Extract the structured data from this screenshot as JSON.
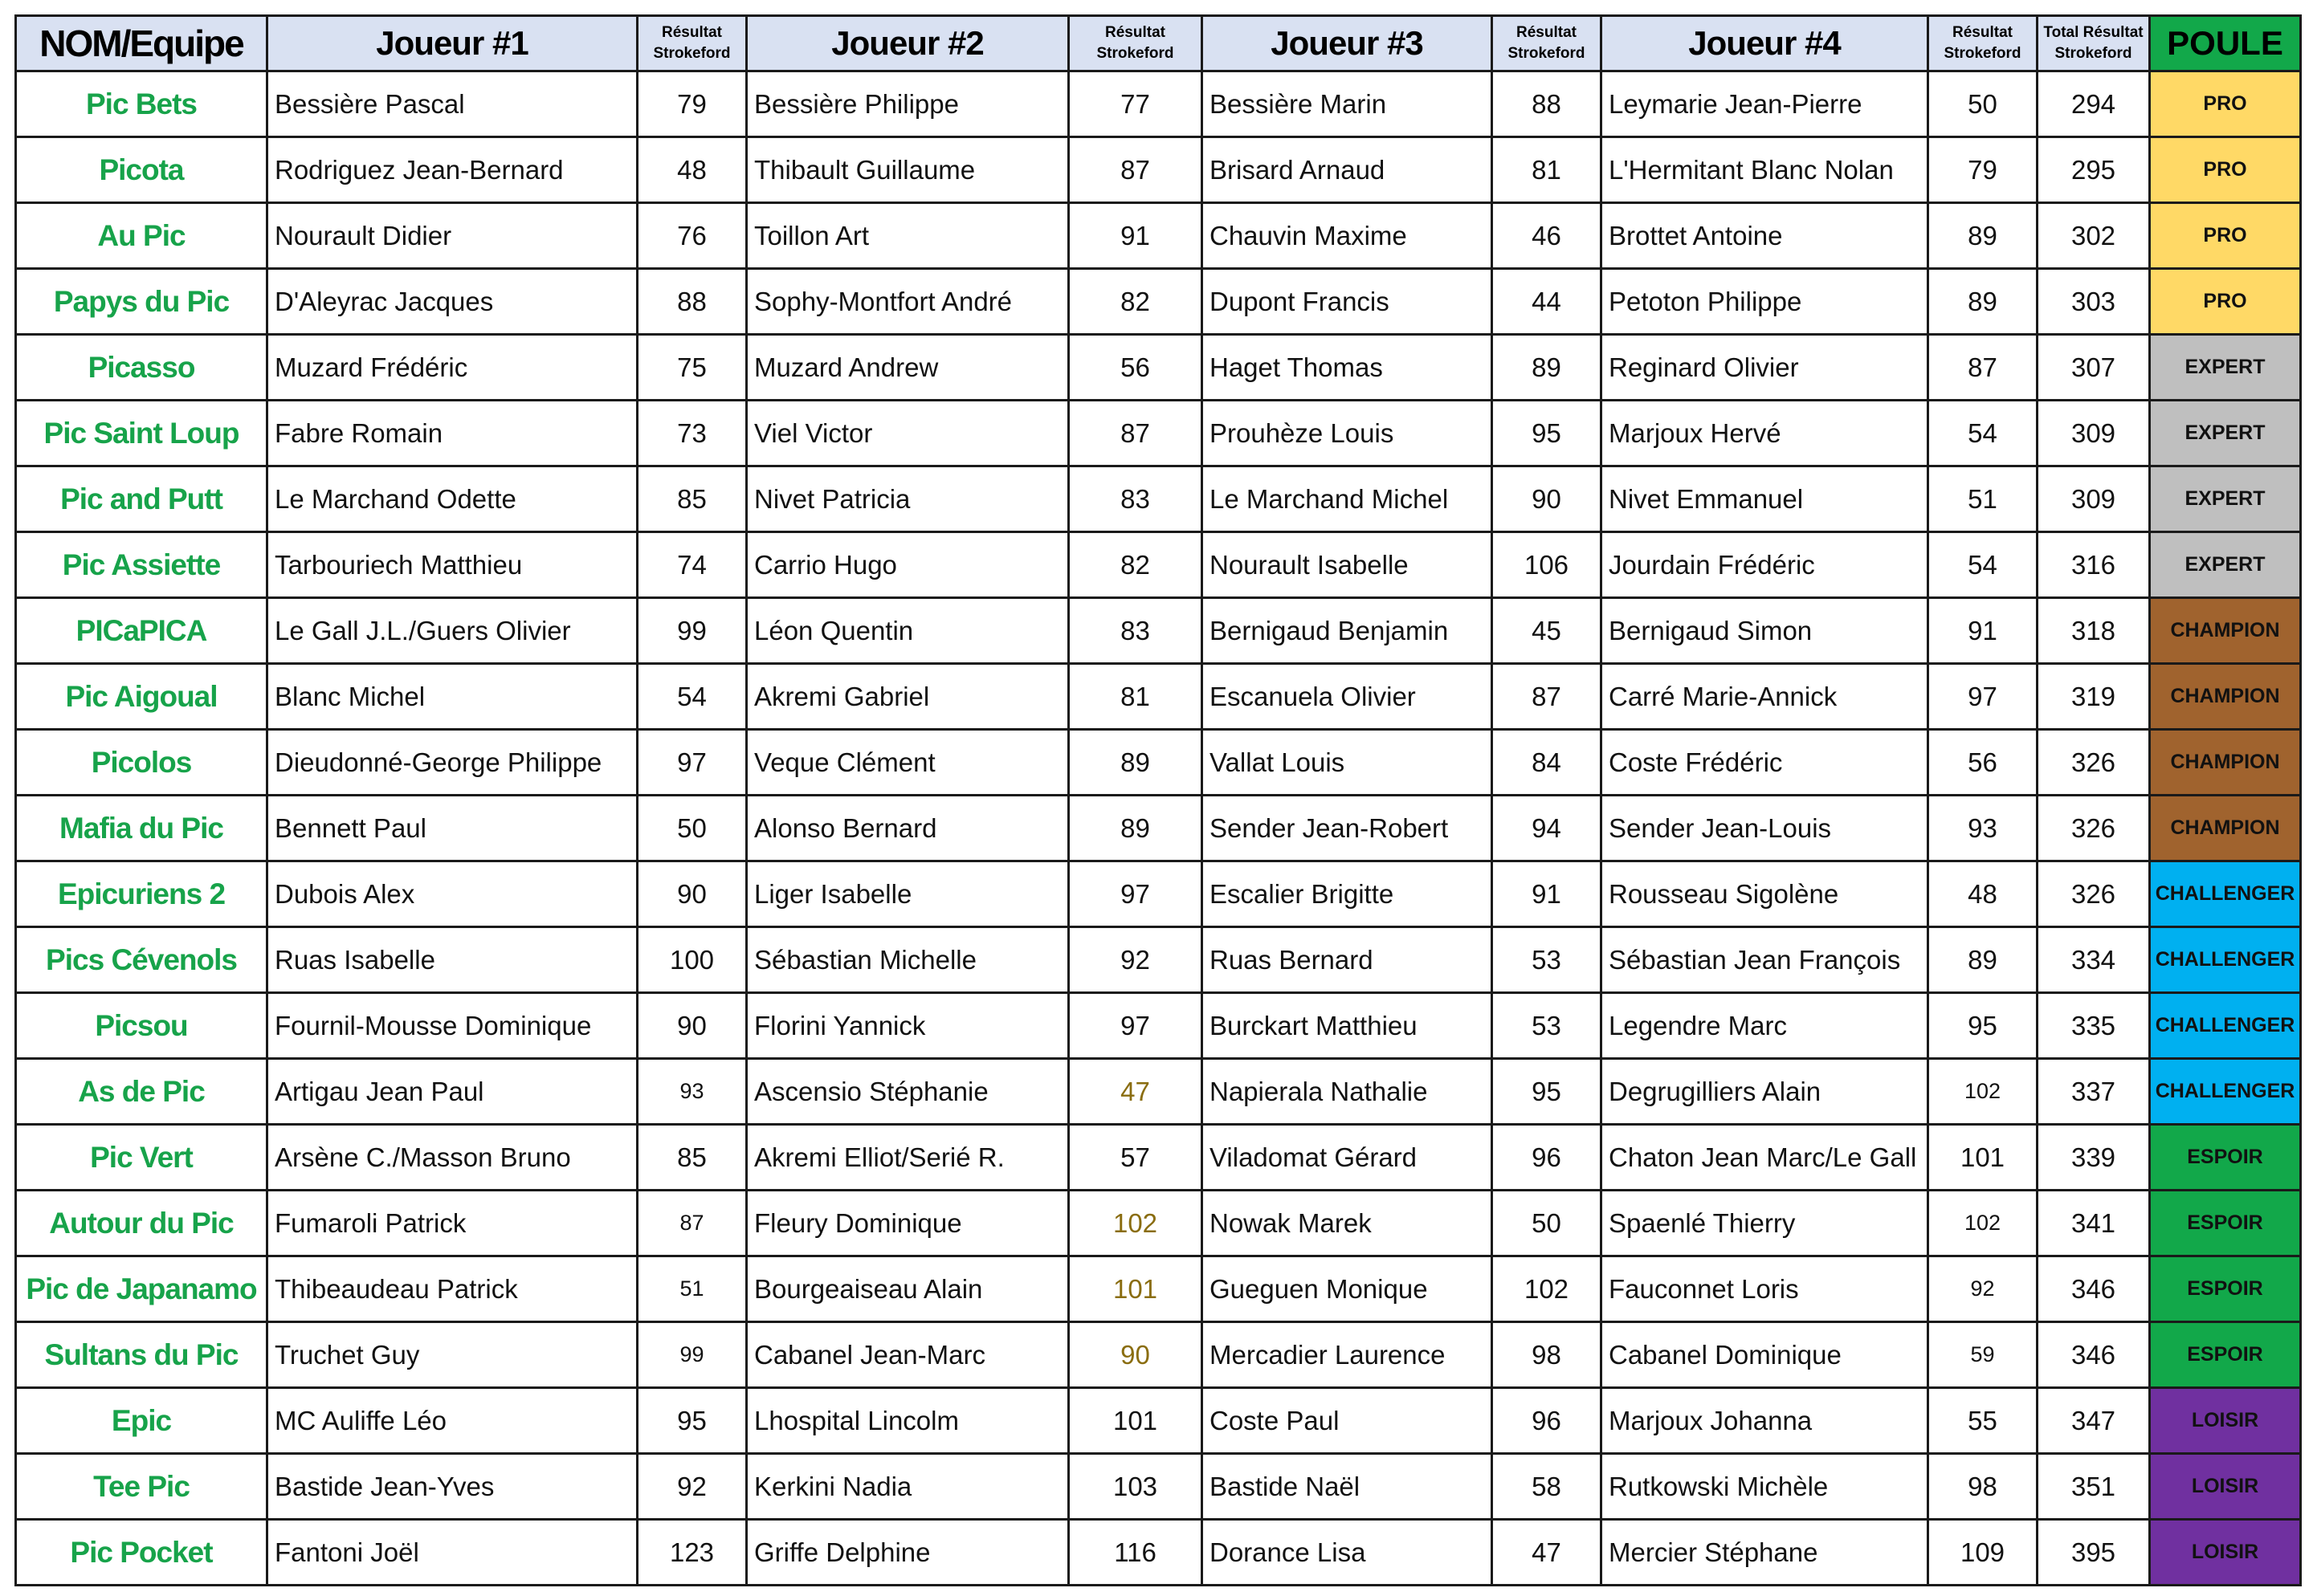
{
  "headers": {
    "team": "NOM/Equipe",
    "player1": "Joueur #1",
    "player2": "Joueur #2",
    "player3": "Joueur #3",
    "player4": "Joueur #4",
    "result_line1": "Résultat",
    "result_line2": "Strokeford",
    "total_line1": "Total Résultat",
    "total_line2": "Strokeford",
    "poule": "POULE"
  },
  "poule_colors": {
    "PRO": "#ffd966",
    "EXPERT": "#bfbfbf",
    "CHAMPION": "#a0632e",
    "CHALLENGER": "#00b0f0",
    "ESPOIR": "#12a84a",
    "LOISIR": "#7030a0"
  },
  "highlight_color": "#8a6d10",
  "rows": [
    {
      "team": "Pic  Bets",
      "p1": "Bessière  Pascal",
      "r1": "79",
      "p2": "Bessière  Philippe",
      "r2": "77",
      "p3": "Bessière   Marin",
      "r3": "88",
      "p4": "Leymarie  Jean-Pierre",
      "r4": "50",
      "total": "294",
      "poule": "PRO"
    },
    {
      "team": "Picota",
      "p1": "Rodriguez   Jean-Bernard",
      "r1": "48",
      "p2": "Thibault   Guillaume",
      "r2": "87",
      "p3": "Brisard   Arnaud",
      "r3": "81",
      "p4": "L'Hermitant Blanc Nolan",
      "r4": "79",
      "total": "295",
      "poule": "PRO"
    },
    {
      "team": "Au Pic",
      "p1": "Nourault  Didier",
      "r1": "76",
      "p2": "Toillon  Art",
      "r2": "91",
      "p3": "Chauvin  Maxime",
      "r3": "46",
      "p4": "Brottet   Antoine",
      "r4": "89",
      "total": "302",
      "poule": "PRO"
    },
    {
      "team": "Papys du Pic",
      "p1": "D'Aleyrac  Jacques",
      "r1": "88",
      "p2": "Sophy-Montfort  André",
      "r2": "82",
      "p3": "Dupont  Francis",
      "r3": "44",
      "p4": "Petoton  Philippe",
      "r4": "89",
      "total": "303",
      "poule": "PRO"
    },
    {
      "team": "Picasso",
      "p1": "Muzard Frédéric",
      "r1": "75",
      "p2": "Muzard Andrew",
      "r2": "56",
      "p3": "Haget    Thomas",
      "r3": "89",
      "p4": "Reginard   Olivier",
      "r4": "87",
      "total": "307",
      "poule": "EXPERT"
    },
    {
      "team": "Pic Saint Loup",
      "p1": "Fabre    Romain",
      "r1": "73",
      "p2": "Viel    Victor",
      "r2": "87",
      "p3": "Prouhèze    Louis",
      "r3": "95",
      "p4": "Marjoux   Hervé",
      "r4": "54",
      "total": "309",
      "poule": "EXPERT"
    },
    {
      "team": "Pic and Putt",
      "p1": "Le Marchand  Odette",
      "r1": "85",
      "p2": "Nivet    Patricia",
      "r2": "83",
      "p3": "Le Marchand  Michel",
      "r3": "90",
      "p4": "Nivet    Emmanuel",
      "r4": "51",
      "total": "309",
      "poule": "EXPERT"
    },
    {
      "team": "Pic  Assiette",
      "p1": "Tarbouriech  Matthieu",
      "r1": "74",
      "p2": "Carrio    Hugo",
      "r2": "82",
      "p3": "Nourault   Isabelle",
      "r3": "106",
      "p4": "Jourdain   Frédéric",
      "r4": "54",
      "total": "316",
      "poule": "EXPERT"
    },
    {
      "team": "PICaPICA",
      "p1": "Le Gall J.L./Guers Olivier",
      "r1": "99",
      "p2": "Léon  Quentin",
      "r2": "83",
      "p3": "Bernigaud  Benjamin",
      "r3": "45",
      "p4": "Bernigaud Simon",
      "r4": "91",
      "total": "318",
      "poule": "CHAMPION"
    },
    {
      "team": "Pic Aigoual",
      "p1": "Blanc  Michel",
      "r1": "54",
      "p2": "Akremi   Gabriel",
      "r2": "81",
      "p3": "Escanuela  Olivier",
      "r3": "87",
      "p4": "Carré Marie-Annick",
      "r4": "97",
      "total": "319",
      "poule": "CHAMPION"
    },
    {
      "team": "Picolos",
      "p1": "Dieudonné-George Philippe",
      "r1": "97",
      "p2": "Veque   Clément",
      "r2": "89",
      "p3": "Vallat    Louis",
      "r3": "84",
      "p4": "Coste    Frédéric",
      "r4": "56",
      "total": "326",
      "poule": "CHAMPION"
    },
    {
      "team": "Mafia du Pic",
      "p1": "Bennett   Paul",
      "r1": "50",
      "p2": "Alonso  Bernard",
      "r2": "89",
      "p3": "Sender  Jean-Robert",
      "r3": "94",
      "p4": "Sender  Jean-Louis",
      "r4": "93",
      "total": "326",
      "poule": "CHAMPION"
    },
    {
      "team": "Epicuriens  2",
      "p1": "Dubois Alex",
      "r1": "90",
      "p2": "Liger  Isabelle",
      "r2": "97",
      "p3": "Escalier  Brigitte",
      "r3": "91",
      "p4": "Rousseau  Sigolène",
      "r4": "48",
      "total": "326",
      "poule": "CHALLENGER"
    },
    {
      "team": "Pics Cévenols",
      "p1": "Ruas  Isabelle",
      "r1": "100",
      "p2": "Sébastian Michelle",
      "r2": "92",
      "p3": "Ruas    Bernard",
      "r3": "53",
      "p4": "Sébastian Jean François",
      "r4": "89",
      "total": "334",
      "poule": "CHALLENGER"
    },
    {
      "team": "Picsou",
      "p1": "Fournil-Mousse  Dominique",
      "r1": "90",
      "p2": "Florini   Yannick",
      "r2": "97",
      "p3": "Burckart  Matthieu",
      "r3": "53",
      "p4": "Legendre    Marc",
      "r4": "95",
      "total": "335",
      "poule": "CHALLENGER"
    },
    {
      "team": "As de Pic",
      "p1": "Artigau  Jean Paul",
      "r1": "93",
      "p2": "Ascensio   Stéphanie",
      "r2": "47",
      "p3": "Napierala   Nathalie",
      "r3": "95",
      "p4": "Degrugilliers  Alain",
      "r4": "102",
      "total": "337",
      "poule": "CHALLENGER"
    },
    {
      "team": "Pic Vert",
      "p1": "Arsène C./Masson Bruno",
      "r1": "85",
      "p2": "Akremi Elliot/Serié R.",
      "r2": "57",
      "p3": "Viladomat  Gérard",
      "r3": "96",
      "p4": "Chaton Jean Marc/Le Gall",
      "r4": "101",
      "total": "339",
      "poule": "ESPOIR"
    },
    {
      "team": "Autour du Pic",
      "p1": "Fumaroli  Patrick",
      "r1": "87",
      "p2": "Fleury  Dominique",
      "r2": "102",
      "p3": "Nowak  Marek",
      "r3": "50",
      "p4": "Spaenlé  Thierry",
      "r4": "102",
      "total": "341",
      "poule": "ESPOIR"
    },
    {
      "team": "Pic de Japanamo",
      "p1": "Thibeaudeau Patrick",
      "r1": "51",
      "p2": "Bourgeaiseau Alain",
      "r2": "101",
      "p3": "Gueguen  Monique",
      "r3": "102",
      "p4": "Fauconnet   Loris",
      "r4": "92",
      "total": "346",
      "poule": "ESPOIR"
    },
    {
      "team": "Sultans du Pic",
      "p1": "Truchet    Guy",
      "r1": "99",
      "p2": "Cabanel  Jean-Marc",
      "r2": "90",
      "p3": "Mercadier  Laurence",
      "r3": "98",
      "p4": "Cabanel  Dominique",
      "r4": "59",
      "total": "346",
      "poule": "ESPOIR"
    },
    {
      "team": "Epic",
      "p1": "MC Auliffe  Léo",
      "r1": "95",
      "p2": "Lhospital  Lincolm",
      "r2": "101",
      "p3": "Coste    Paul",
      "r3": "96",
      "p4": "Marjoux  Johanna",
      "r4": "55",
      "total": "347",
      "poule": "LOISIR"
    },
    {
      "team": "Tee Pic",
      "p1": "Bastide  Jean-Yves",
      "r1": "92",
      "p2": "Kerkini Nadia",
      "r2": "103",
      "p3": "Bastide  Naël",
      "r3": "58",
      "p4": "Rutkowski  Michèle",
      "r4": "98",
      "total": "351",
      "poule": "LOISIR"
    },
    {
      "team": "Pic Pocket",
      "p1": "Fantoni   Joël",
      "r1": "123",
      "p2": "Griffe  Delphine",
      "r2": "116",
      "p3": "Dorance    Lisa",
      "r3": "47",
      "p4": "Mercier   Stéphane",
      "r4": "109",
      "total": "395",
      "poule": "LOISIR"
    }
  ]
}
